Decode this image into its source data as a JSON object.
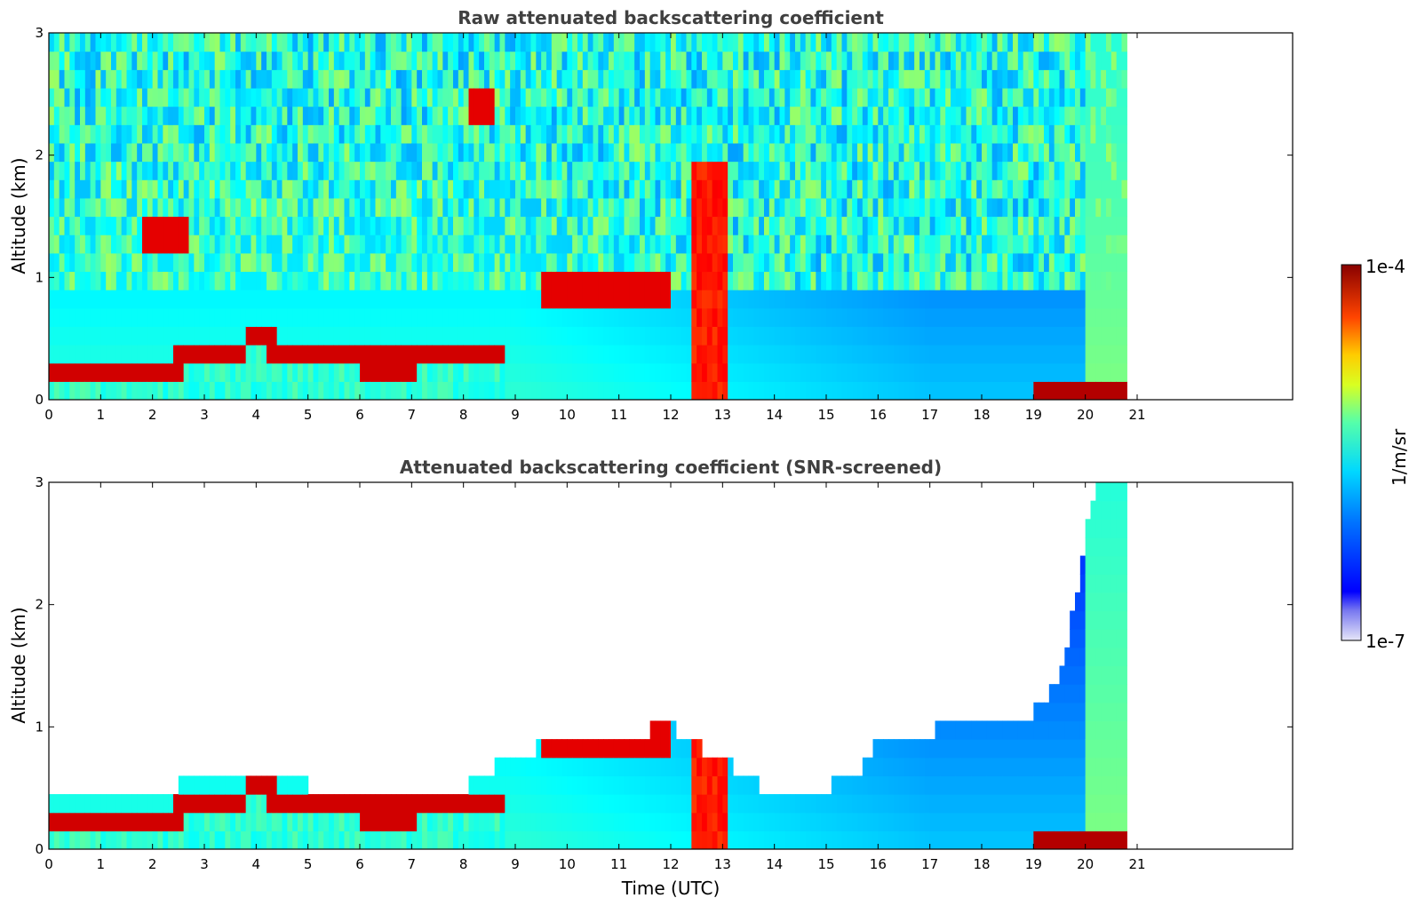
{
  "chart_data": [
    {
      "type": "heatmap",
      "title": "Raw attenuated backscattering coefficient",
      "xlabel": "",
      "ylabel": "Altitude (km)",
      "xlim": [
        0,
        24
      ],
      "ylim": [
        0,
        3
      ],
      "xticks": [
        "0",
        "1",
        "2",
        "3",
        "4",
        "5",
        "6",
        "7",
        "8",
        "9",
        "10",
        "11",
        "12",
        "13",
        "14",
        "15",
        "16",
        "17",
        "18",
        "19",
        "20",
        "21"
      ],
      "yticks": [
        "0",
        "1",
        "2",
        "3"
      ],
      "data_extent_hours": [
        0,
        20.8
      ],
      "features": [
        {
          "kind": "boundary_layer_top",
          "points": [
            [
              0,
              0.25
            ],
            [
              1,
              0.26
            ],
            [
              2,
              0.28
            ],
            [
              3,
              0.32
            ],
            [
              4,
              0.48
            ],
            [
              4.3,
              0.45
            ],
            [
              5,
              0.42
            ],
            [
              6,
              0.3
            ],
            [
              7,
              0.3
            ],
            [
              8,
              0.35
            ],
            [
              8.8,
              0.35
            ]
          ]
        },
        {
          "kind": "cloud",
          "x": [
            1.8,
            2.7
          ],
          "y": [
            1.2,
            1.45
          ]
        },
        {
          "kind": "cloud",
          "x": [
            8.1,
            8.6
          ],
          "y": [
            2.3,
            2.55
          ]
        },
        {
          "kind": "cloud",
          "x": [
            9.5,
            12.0
          ],
          "y": [
            0.7,
            1.1
          ]
        },
        {
          "kind": "precipitation",
          "x": [
            12.4,
            13.1
          ],
          "y": [
            0,
            1.9
          ]
        },
        {
          "kind": "surface_layer",
          "x": [
            19.0,
            20.8
          ],
          "y": [
            0,
            0.08
          ]
        }
      ]
    },
    {
      "type": "heatmap",
      "title": "Attenuated backscattering coefficient (SNR-screened)",
      "xlabel": "Time (UTC)",
      "ylabel": "Altitude (km)",
      "xlim": [
        0,
        24
      ],
      "ylim": [
        0,
        3
      ],
      "xticks": [
        "0",
        "1",
        "2",
        "3",
        "4",
        "5",
        "6",
        "7",
        "8",
        "9",
        "10",
        "11",
        "12",
        "13",
        "14",
        "15",
        "16",
        "17",
        "18",
        "19",
        "20",
        "21"
      ],
      "yticks": [
        "0",
        "1",
        "2",
        "3"
      ],
      "data_extent_hours": [
        0,
        20.8
      ],
      "screened_signal_top_km": [
        [
          0,
          0.4
        ],
        [
          2,
          0.5
        ],
        [
          4,
          0.6
        ],
        [
          6,
          0.45
        ],
        [
          8,
          0.5
        ],
        [
          9,
          0.8
        ],
        [
          12,
          1.0
        ],
        [
          14,
          0.45
        ],
        [
          15.5,
          0.55
        ],
        [
          16,
          0.9
        ],
        [
          19,
          1.1
        ],
        [
          19.6,
          1.5
        ],
        [
          20.2,
          3.0
        ],
        [
          20.8,
          3.0
        ]
      ]
    }
  ],
  "colorbar": {
    "label": "1/m/sr",
    "max_label": "1e-4",
    "min_label": "1e-7",
    "scale": "log",
    "colormap": "jet"
  }
}
